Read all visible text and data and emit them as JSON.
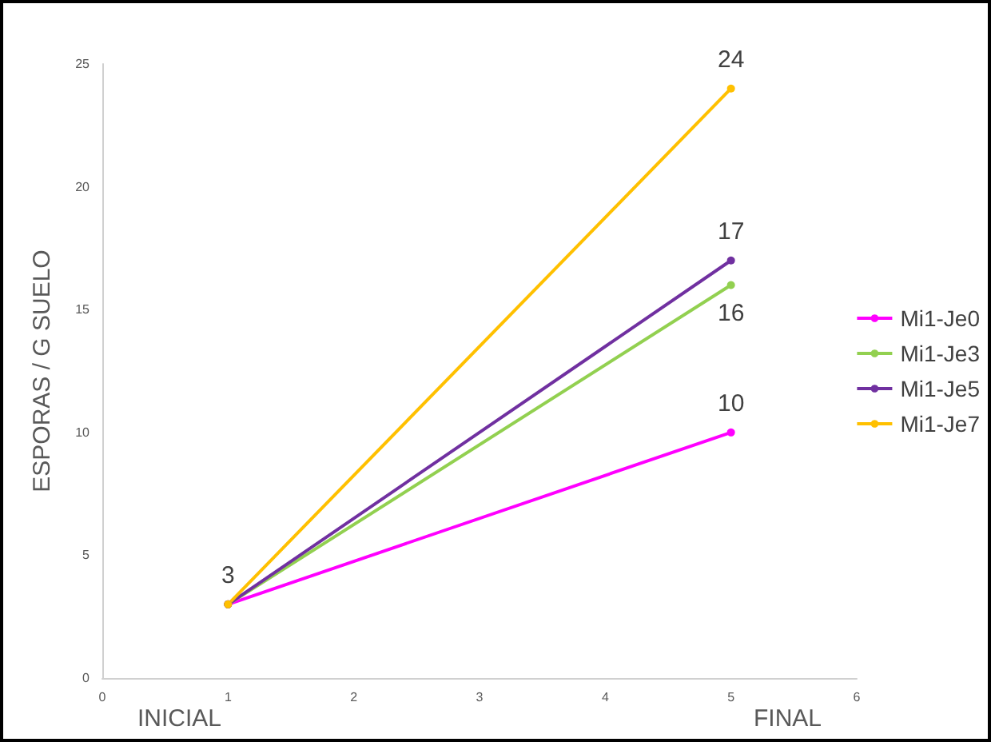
{
  "chart_data": {
    "type": "line",
    "ylabel": "ESPORAS / G SUELO",
    "x": [
      1,
      5
    ],
    "series": [
      {
        "name": "Mi1-Je0",
        "color": "#ff00ff",
        "values": [
          3,
          10
        ],
        "value_labels": [
          "3",
          "10"
        ]
      },
      {
        "name": "Mi1-Je3",
        "color": "#92d050",
        "values": [
          3,
          16
        ],
        "value_labels": [
          null,
          "16"
        ]
      },
      {
        "name": "Mi1-Je5",
        "color": "#7030a0",
        "values": [
          3,
          17
        ],
        "value_labels": [
          null,
          "17"
        ]
      },
      {
        "name": "Mi1-Je7",
        "color": "#ffc000",
        "values": [
          3,
          24
        ],
        "value_labels": [
          null,
          "24"
        ]
      }
    ],
    "xlim": [
      0,
      6
    ],
    "xticks": [
      0,
      1,
      2,
      3,
      4,
      5,
      6
    ],
    "ylim": [
      0,
      25
    ],
    "yticks": [
      0,
      5,
      10,
      15,
      20,
      25
    ],
    "annotations": [
      "INICIAL",
      "FINAL"
    ],
    "grid": false,
    "legend": "right",
    "marker": "circle",
    "line_style": "solid"
  }
}
